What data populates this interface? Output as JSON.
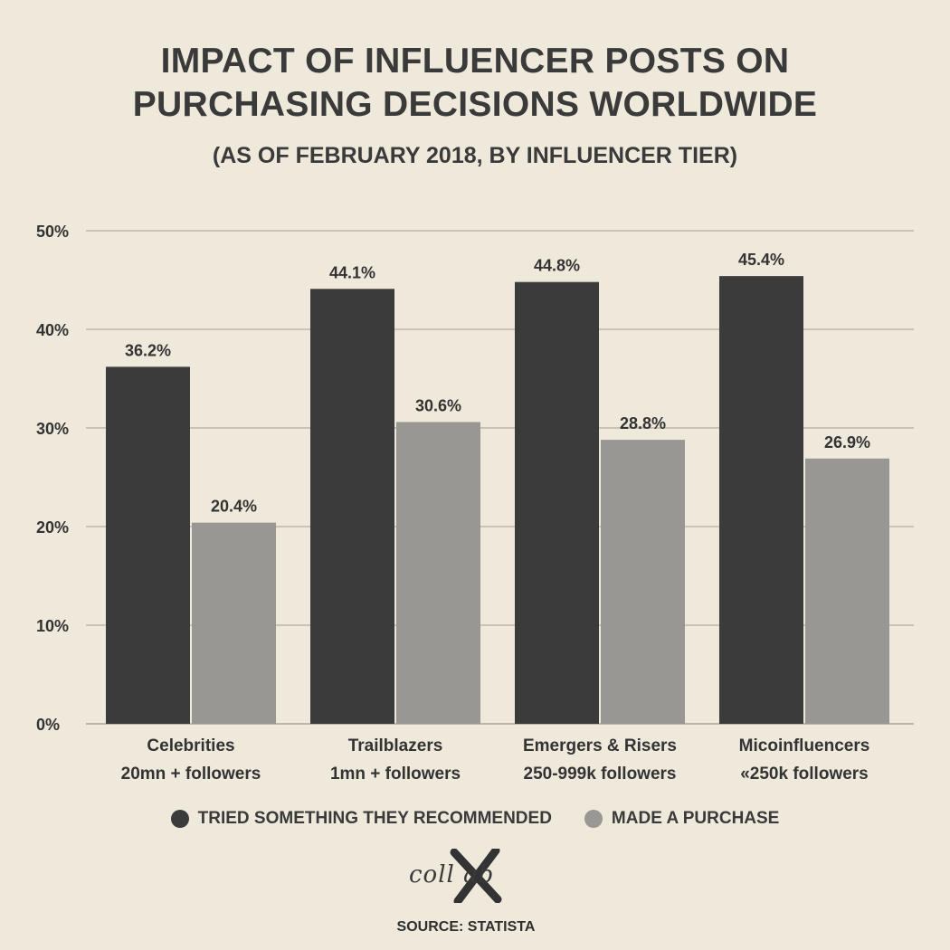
{
  "title_line1": "IMPACT OF INFLUENCER POSTS ON",
  "title_line2": "PURCHASING DECISIONS WORLDWIDE",
  "subtitle": "(AS OF FEBRUARY 2018, BY INFLUENCER TIER)",
  "legend": [
    {
      "label": "TRIED SOMETHING THEY RECOMMENDED",
      "color": "#3b3b3b"
    },
    {
      "label": "MADE A PURCHASE",
      "color": "#989793"
    }
  ],
  "logo_text": "coll ab",
  "source": "SOURCE: STATISTA",
  "colors": {
    "background": "#efe9dc",
    "series_dark": "#3b3b3b",
    "series_light": "#989793",
    "grid": "#c9c2b5"
  },
  "chart_data": {
    "type": "bar",
    "categories": [
      [
        "Celebrities",
        "20mn + followers"
      ],
      [
        "Trailblazers",
        "1mn + followers"
      ],
      [
        "Emergers & Risers",
        "250-999k followers"
      ],
      [
        "Micoinfluencers",
        "«250k followers"
      ]
    ],
    "series": [
      {
        "name": "TRIED SOMETHING THEY RECOMMENDED",
        "values": [
          36.2,
          44.1,
          44.8,
          45.4
        ],
        "labels": [
          "36.2%",
          "44.1%",
          "44.8%",
          "45.4%"
        ]
      },
      {
        "name": "MADE A PURCHASE",
        "values": [
          20.4,
          30.6,
          28.8,
          26.9
        ],
        "labels": [
          "20.4%",
          "30.6%",
          "28.8%",
          "26.9%"
        ]
      }
    ],
    "ylim": [
      0,
      50
    ],
    "yticks": [
      0,
      10,
      20,
      30,
      40,
      50
    ],
    "ytick_labels": [
      "0%",
      "10%",
      "20%",
      "30%",
      "40%",
      "50%"
    ],
    "grid": true,
    "legend_position": "bottom"
  }
}
